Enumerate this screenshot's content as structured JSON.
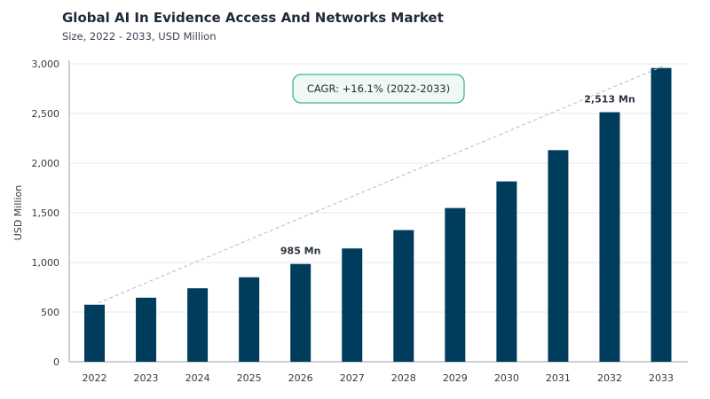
{
  "chart_data": {
    "type": "bar",
    "title": "Global AI In Evidence Access And Networks Market",
    "subtitle": "Size, 2022 - 2033, USD Million",
    "xlabel": "",
    "ylabel": "USD Million",
    "categories": [
      "2022",
      "2023",
      "2024",
      "2025",
      "2026",
      "2027",
      "2028",
      "2029",
      "2030",
      "2031",
      "2032",
      "2033"
    ],
    "values": [
      574,
      645,
      740,
      851,
      985,
      1141,
      1326,
      1548,
      1816,
      2131,
      2513,
      2958
    ],
    "ylim": [
      0,
      3000
    ],
    "yticks": [
      0,
      500,
      1000,
      1500,
      2000,
      2500,
      3000
    ],
    "ytick_labels": [
      "0",
      "500",
      "1,000",
      "1,500",
      "2,000",
      "2,500",
      "3,000"
    ],
    "grid": true,
    "bar_color": "#003d5c",
    "annotations": [
      {
        "category": "2026",
        "text": "985 Mn"
      },
      {
        "category": "2032",
        "text": "2,513 Mn"
      }
    ],
    "cagr_label": "CAGR: +16.1% (2022-2033)",
    "cagr_color": "#3fb58a"
  }
}
